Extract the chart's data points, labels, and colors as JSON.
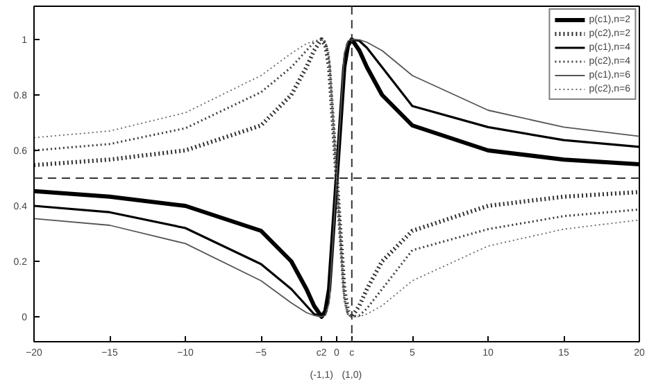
{
  "chart_data": {
    "type": "line",
    "x": [
      -20,
      -15,
      -10,
      -5,
      -3,
      -2,
      -1.5,
      -1,
      -0.75,
      -0.5,
      0,
      0.5,
      0.75,
      1,
      1.5,
      2,
      3,
      5,
      10,
      15,
      20
    ],
    "series": [
      {
        "name": "p(c1),n=2",
        "color": "#000000",
        "line_style": "solid",
        "values": [
          0.453,
          0.433,
          0.4,
          0.31,
          0.2,
          0.1,
          0.04,
          0,
          0.02,
          0.1,
          0.5,
          0.9,
          0.98,
          1,
          0.96,
          0.9,
          0.8,
          0.69,
          0.6,
          0.567,
          0.55
        ]
      },
      {
        "name": "p(c2),n=2",
        "color": "#303030",
        "line_style": "dotted",
        "values": [
          0.547,
          0.567,
          0.6,
          0.69,
          0.8,
          0.9,
          0.96,
          1,
          0.98,
          0.9,
          0.5,
          0.1,
          0.02,
          0,
          0.04,
          0.1,
          0.2,
          0.31,
          0.4,
          0.433,
          0.45
        ]
      },
      {
        "name": "p(c1),n=4",
        "color": "#000000",
        "line_style": "solid",
        "values": [
          0.4,
          0.377,
          0.32,
          0.19,
          0.1,
          0.04,
          0.01,
          0,
          0.01,
          0.07,
          0.5,
          0.93,
          0.99,
          1,
          0.995,
          0.97,
          0.9,
          0.76,
          0.684,
          0.637,
          0.613
        ]
      },
      {
        "name": "p(c2),n=4",
        "color": "#404040",
        "line_style": "dotted",
        "values": [
          0.6,
          0.623,
          0.68,
          0.81,
          0.9,
          0.96,
          0.99,
          1,
          0.99,
          0.93,
          0.5,
          0.07,
          0.01,
          0,
          0.005,
          0.03,
          0.1,
          0.24,
          0.316,
          0.363,
          0.387
        ]
      },
      {
        "name": "p(c1),n=6",
        "color": "#555555",
        "line_style": "solid",
        "values": [
          0.354,
          0.33,
          0.264,
          0.13,
          0.05,
          0.015,
          0.005,
          0,
          0.005,
          0.05,
          0.5,
          0.95,
          0.995,
          1,
          0.999,
          0.99,
          0.96,
          0.87,
          0.745,
          0.684,
          0.651
        ]
      },
      {
        "name": "p(c2),n=6",
        "color": "#666666",
        "line_style": "dotted",
        "values": [
          0.646,
          0.67,
          0.736,
          0.87,
          0.95,
          0.985,
          0.995,
          1,
          0.995,
          0.95,
          0.5,
          0.05,
          0.005,
          0,
          0.001,
          0.01,
          0.04,
          0.13,
          0.255,
          0.316,
          0.349
        ]
      }
    ],
    "xlim": [
      -20,
      20
    ],
    "ylim": [
      -0.09,
      1.12
    ],
    "xticks": [
      -20,
      -15,
      -10,
      -5,
      {
        "value": -1,
        "label": "c2"
      },
      0,
      {
        "value": 1,
        "label": "c"
      },
      5,
      10,
      15,
      20
    ],
    "yticks": [
      0,
      0.2,
      0.4,
      0.6,
      0.8,
      1
    ],
    "ref_lines": [
      {
        "axis": "y",
        "value": 0.5,
        "line_style": "dashed",
        "color": "#333333"
      },
      {
        "axis": "x",
        "value": 1,
        "line_style": "dashed",
        "color": "#333333"
      }
    ],
    "annotations": [
      "(-1,1)",
      "(1,0)"
    ],
    "grid": false,
    "legend": "top right",
    "marker": "none"
  }
}
